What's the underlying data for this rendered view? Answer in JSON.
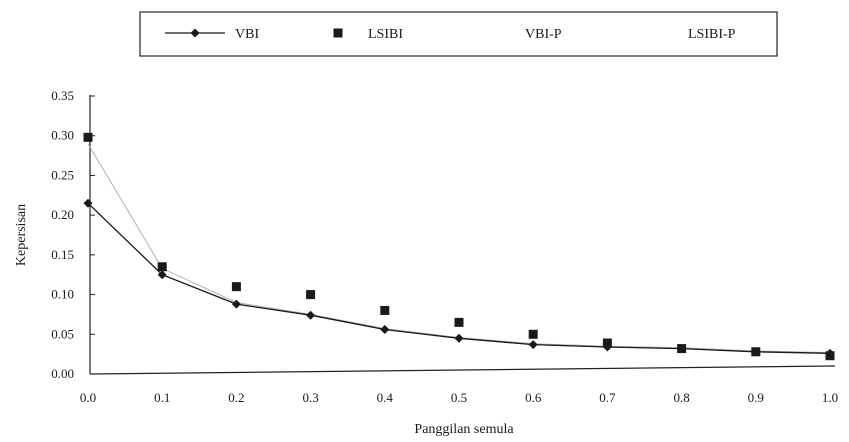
{
  "chart_data": {
    "type": "line",
    "xlabel": "Panggilan semula",
    "ylabel": "Kepersisan",
    "x": [
      0.0,
      0.1,
      0.2,
      0.3,
      0.4,
      0.5,
      0.6,
      0.7,
      0.8,
      0.9,
      1.0
    ],
    "x_tick_labels": [
      "0.0",
      "0.1",
      "0.2",
      "0.3",
      "0.4",
      "0.5",
      "0.6",
      "0.7",
      "0.8",
      "0.9",
      "1.0"
    ],
    "y_tick_labels": [
      "0.00",
      "0.05",
      "0.10",
      "0.15",
      "0.20",
      "0.25",
      "0.30",
      "0.35"
    ],
    "xlim": [
      0,
      1.0
    ],
    "ylim": [
      0,
      0.35
    ],
    "grid": false,
    "legend_position": "top",
    "series": [
      {
        "name": "VBI",
        "marker": "diamond",
        "line": true,
        "color": "#1a1a1a",
        "values": [
          0.215,
          0.125,
          0.088,
          0.074,
          0.056,
          0.045,
          0.037,
          0.034,
          0.032,
          0.028,
          0.026
        ]
      },
      {
        "name": "LSIBI",
        "marker": "square",
        "line": false,
        "color": "#1a1a1a",
        "values": [
          0.298,
          0.135,
          0.11,
          0.1,
          0.08,
          0.065,
          0.05,
          0.039,
          0.032,
          0.028,
          0.023
        ]
      },
      {
        "name": "VBI-P",
        "marker": "none",
        "line": true,
        "color": "#9a9a9a",
        "values": [
          0.215,
          0.125,
          0.088,
          0.074,
          0.056,
          0.045,
          0.037,
          0.034,
          0.032,
          0.028,
          0.026
        ]
      },
      {
        "name": "LSIBI-P",
        "marker": "none",
        "line": true,
        "color": "#b0b0b0",
        "values": [
          0.29,
          0.133,
          0.09,
          0.075,
          0.057,
          0.046,
          0.038,
          0.035,
          0.033,
          0.029,
          0.027
        ]
      }
    ]
  }
}
